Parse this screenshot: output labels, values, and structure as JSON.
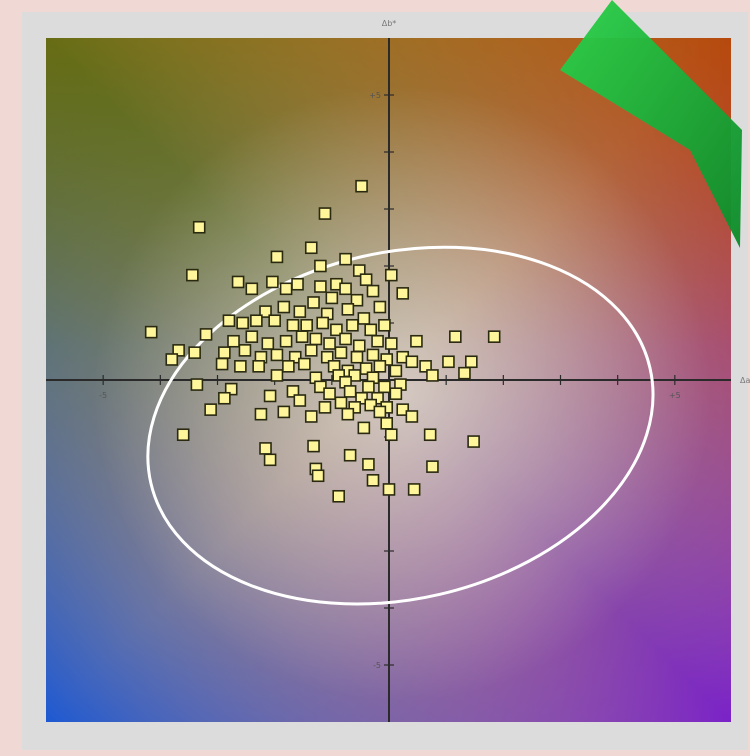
{
  "chart_data": {
    "type": "scatter",
    "title": "",
    "xlabel": "Δa*",
    "ylabel": "Δb*",
    "xlim": [
      -15,
      15
    ],
    "ylim": [
      -15,
      15
    ],
    "x_tick_step": 2.5,
    "y_tick_step": 2.5,
    "x_tick_labels": [
      {
        "value": -12.5,
        "label": "-5"
      },
      {
        "value": 12.5,
        "label": "+5"
      }
    ],
    "y_tick_labels": [
      {
        "value": 12.5,
        "label": "+5"
      },
      {
        "value": -12.5,
        "label": "-5"
      }
    ],
    "background": "CIELAB a*/b* color plane gradient",
    "grid": false,
    "ellipse": {
      "center": [
        0.5,
        -2.0
      ],
      "semi_axis_x": 11.2,
      "semi_axis_y": 7.6,
      "rotation_deg": -13,
      "color": "#ffffff"
    },
    "marker": {
      "shape": "square",
      "fill": "#fff59a",
      "stroke": "#2a2a10"
    },
    "badge": {
      "type": "checkmark",
      "color": "#1ea83c"
    },
    "points": [
      [
        -1.2,
        8.5
      ],
      [
        -2.8,
        7.3
      ],
      [
        -8.3,
        6.7
      ],
      [
        -3.4,
        5.8
      ],
      [
        -3.0,
        5.0
      ],
      [
        -4.9,
        5.4
      ],
      [
        -1.9,
        5.3
      ],
      [
        -1.3,
        4.8
      ],
      [
        0.1,
        4.6
      ],
      [
        -8.6,
        4.6
      ],
      [
        -6.6,
        4.3
      ],
      [
        -5.1,
        4.3
      ],
      [
        -4.5,
        4.0
      ],
      [
        -6.0,
        4.0
      ],
      [
        -4.0,
        4.2
      ],
      [
        -3.0,
        4.1
      ],
      [
        -2.3,
        4.2
      ],
      [
        -1.9,
        4.0
      ],
      [
        -1.0,
        4.4
      ],
      [
        0.6,
        3.8
      ],
      [
        -2.5,
        3.6
      ],
      [
        -1.4,
        3.5
      ],
      [
        -0.4,
        3.2
      ],
      [
        -0.7,
        3.9
      ],
      [
        -5.4,
        3.0
      ],
      [
        -4.6,
        3.2
      ],
      [
        -3.9,
        3.0
      ],
      [
        -3.3,
        3.4
      ],
      [
        -2.7,
        2.9
      ],
      [
        -1.8,
        3.1
      ],
      [
        -1.1,
        2.7
      ],
      [
        -7.0,
        2.6
      ],
      [
        -6.4,
        2.5
      ],
      [
        -5.8,
        2.6
      ],
      [
        -5.0,
        2.6
      ],
      [
        -4.2,
        2.4
      ],
      [
        -3.6,
        2.4
      ],
      [
        -2.9,
        2.5
      ],
      [
        -2.3,
        2.2
      ],
      [
        -1.6,
        2.4
      ],
      [
        -0.8,
        2.2
      ],
      [
        -0.2,
        2.4
      ],
      [
        -10.4,
        2.1
      ],
      [
        -8.0,
        2.0
      ],
      [
        -6.8,
        1.7
      ],
      [
        -6.0,
        1.9
      ],
      [
        -5.3,
        1.6
      ],
      [
        -4.5,
        1.7
      ],
      [
        -3.8,
        1.9
      ],
      [
        -3.2,
        1.8
      ],
      [
        -2.6,
        1.6
      ],
      [
        -1.9,
        1.8
      ],
      [
        -1.3,
        1.5
      ],
      [
        -0.5,
        1.7
      ],
      [
        0.1,
        1.6
      ],
      [
        -9.2,
        1.3
      ],
      [
        -8.5,
        1.2
      ],
      [
        -7.2,
        1.2
      ],
      [
        -6.3,
        1.3
      ],
      [
        -5.6,
        1.0
      ],
      [
        -4.9,
        1.1
      ],
      [
        -4.1,
        1.0
      ],
      [
        -3.4,
        1.3
      ],
      [
        -2.7,
        1.0
      ],
      [
        -2.1,
        1.2
      ],
      [
        -1.4,
        1.0
      ],
      [
        -0.7,
        1.1
      ],
      [
        -0.1,
        0.9
      ],
      [
        0.6,
        1.0
      ],
      [
        2.9,
        1.9
      ],
      [
        4.6,
        1.9
      ],
      [
        1.2,
        1.7
      ],
      [
        -9.5,
        0.9
      ],
      [
        -7.3,
        0.7
      ],
      [
        -6.5,
        0.6
      ],
      [
        -5.7,
        0.6
      ],
      [
        -4.4,
        0.6
      ],
      [
        -3.7,
        0.7
      ],
      [
        -2.4,
        0.6
      ],
      [
        -1.8,
        0.4
      ],
      [
        -1.0,
        0.5
      ],
      [
        -0.4,
        0.6
      ],
      [
        0.3,
        0.4
      ],
      [
        1.0,
        0.8
      ],
      [
        1.6,
        0.6
      ],
      [
        2.6,
        0.8
      ],
      [
        3.6,
        0.8
      ],
      [
        -4.9,
        0.2
      ],
      [
        -3.2,
        0.1
      ],
      [
        -2.2,
        0.2
      ],
      [
        -1.5,
        0.2
      ],
      [
        -0.7,
        0.1
      ],
      [
        1.9,
        0.2
      ],
      [
        3.3,
        0.3
      ],
      [
        -1.9,
        -0.1
      ],
      [
        -0.9,
        -0.3
      ],
      [
        -0.2,
        -0.3
      ],
      [
        0.5,
        -0.2
      ],
      [
        -3.0,
        -0.3
      ],
      [
        -4.2,
        -0.5
      ],
      [
        -8.4,
        -0.2
      ],
      [
        -6.9,
        -0.4
      ],
      [
        -2.6,
        -0.6
      ],
      [
        -1.7,
        -0.5
      ],
      [
        -1.2,
        -0.8
      ],
      [
        -0.5,
        -0.8
      ],
      [
        0.3,
        -0.6
      ],
      [
        -7.2,
        -0.8
      ],
      [
        -5.2,
        -0.7
      ],
      [
        -3.9,
        -0.9
      ],
      [
        -2.1,
        -1.0
      ],
      [
        -1.5,
        -1.2
      ],
      [
        -0.8,
        -1.1
      ],
      [
        -0.1,
        -1.2
      ],
      [
        -7.8,
        -1.3
      ],
      [
        -4.6,
        -1.4
      ],
      [
        -2.8,
        -1.2
      ],
      [
        -1.8,
        -1.5
      ],
      [
        -0.4,
        -1.4
      ],
      [
        0.6,
        -1.3
      ],
      [
        -3.4,
        -1.6
      ],
      [
        -0.1,
        -1.9
      ],
      [
        -5.6,
        -1.5
      ],
      [
        -1.1,
        -2.1
      ],
      [
        1.0,
        -1.6
      ],
      [
        1.8,
        -2.4
      ],
      [
        -9.0,
        -2.4
      ],
      [
        3.7,
        -2.7
      ],
      [
        0.1,
        -2.4
      ],
      [
        -3.3,
        -2.9
      ],
      [
        -5.4,
        -3.0
      ],
      [
        -1.7,
        -3.3
      ],
      [
        -5.2,
        -3.5
      ],
      [
        -3.2,
        -3.9
      ],
      [
        -0.9,
        -3.7
      ],
      [
        1.9,
        -3.8
      ],
      [
        -3.1,
        -4.2
      ],
      [
        -0.7,
        -4.4
      ],
      [
        0.0,
        -4.8
      ],
      [
        -2.2,
        -5.1
      ],
      [
        1.1,
        -4.8
      ]
    ]
  }
}
